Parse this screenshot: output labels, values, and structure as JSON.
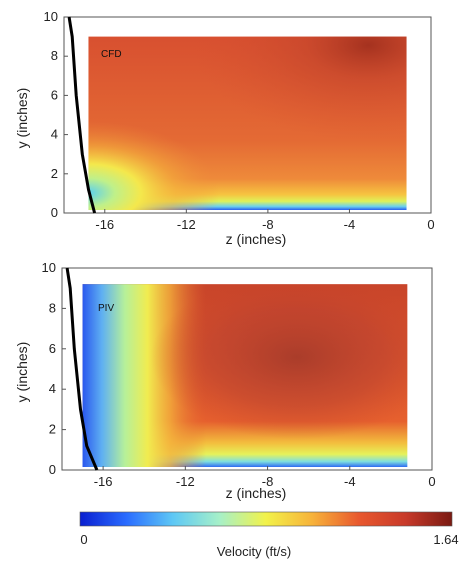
{
  "chart_data": [
    {
      "type": "heatmap",
      "panel_label": "CFD",
      "xlabel": "z (inches)",
      "ylabel": "y (inches)",
      "xlim": [
        -18,
        0
      ],
      "ylim": [
        0,
        10
      ],
      "x_ticks": [
        -16,
        -12,
        -8,
        -4,
        0
      ],
      "x_tick_labels": [
        "-16",
        "-12",
        "-8",
        "-4",
        "0"
      ],
      "y_ticks": [
        0,
        2,
        4,
        6,
        8,
        10
      ],
      "y_tick_labels": [
        "0",
        "2",
        "4",
        "6",
        "8",
        "10"
      ],
      "data_extent": {
        "z": [
          -16.8,
          -1.2
        ],
        "y": [
          0,
          9
        ]
      },
      "peak_region": {
        "z": -3.6,
        "y": 8.7
      },
      "description_values": {
        "max_ft_s": 1.64,
        "near_wall_min_ft_s": 0
      },
      "boundary_curve": {
        "z": [
          -17.6,
          -17.4,
          -17.1,
          -16.8,
          -16.5
        ],
        "y": [
          9,
          6,
          3,
          1.2,
          0
        ]
      }
    },
    {
      "type": "heatmap",
      "panel_label": "PIV",
      "xlabel": "z (inches)",
      "ylabel": "y (inches)",
      "xlim": [
        -18,
        0
      ],
      "ylim": [
        0,
        10
      ],
      "x_ticks": [
        -16,
        -12,
        -8,
        -4,
        0
      ],
      "x_tick_labels": [
        "-16",
        "-12",
        "-8",
        "-4",
        "0"
      ],
      "y_ticks": [
        0,
        2,
        4,
        6,
        8,
        10
      ],
      "y_tick_labels": [
        "0",
        "2",
        "4",
        "6",
        "8",
        "10"
      ],
      "data_extent": {
        "z": [
          -17,
          -1.2
        ],
        "y": [
          0,
          9.2
        ]
      },
      "peak_region": {
        "z": -5,
        "y": 4
      },
      "description_values": {
        "max_ft_s": 1.64,
        "near_wall_min_ft_s": 0
      },
      "boundary_curve": {
        "z": [
          -17.6,
          -17.4,
          -17.1,
          -16.8,
          -16.3
        ],
        "y": [
          9,
          6,
          3,
          1.2,
          0
        ]
      }
    }
  ],
  "colorbar": {
    "label": "Velocity (ft/s)",
    "min_label": "0",
    "max_label": "1.64",
    "range": [
      0,
      1.64
    ],
    "colors": [
      "#0a1fd0",
      "#2a6cff",
      "#5ec8f5",
      "#a6f0c8",
      "#f2f24a",
      "#f7b23a",
      "#e8582e",
      "#c83a2a",
      "#7a1a12"
    ]
  }
}
